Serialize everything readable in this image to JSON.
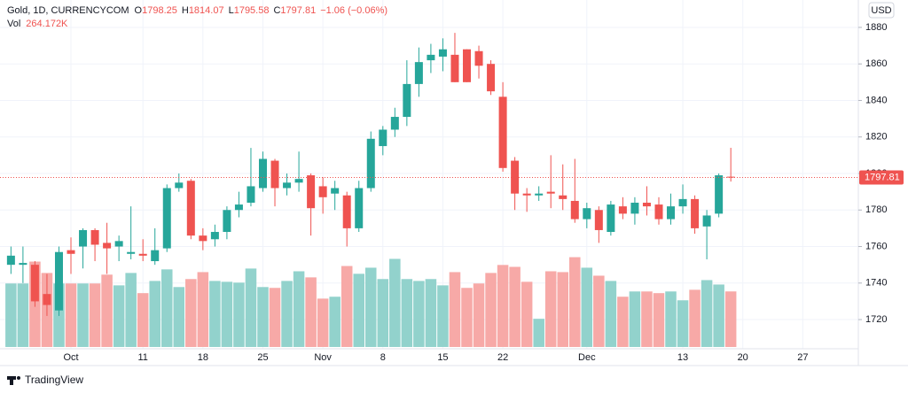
{
  "header": {
    "symbol": "Gold, 1D, CURRENCYCOM",
    "open_prefix": "O",
    "high_prefix": "H",
    "low_prefix": "L",
    "close_prefix": "C",
    "change": "−1.06 (−0.06%)",
    "vol_prefix": "Vol",
    "vol_value": "264.172K"
  },
  "currency": "USD",
  "brand": "TradingView",
  "chart_data": {
    "type": "candlestick",
    "categories": [
      null,
      null,
      null,
      null,
      null,
      "Oct",
      null,
      null,
      null,
      null,
      null,
      "11",
      null,
      null,
      null,
      null,
      "18",
      null,
      null,
      null,
      null,
      "25",
      null,
      null,
      null,
      null,
      "Nov",
      null,
      null,
      null,
      null,
      "8",
      null,
      null,
      null,
      null,
      "15",
      null,
      null,
      null,
      null,
      "22",
      null,
      null,
      null,
      null,
      null,
      null,
      "Dec",
      null,
      null,
      null,
      null,
      null,
      null,
      null,
      "13",
      null,
      null,
      null,
      null,
      "20",
      null,
      null,
      null,
      null,
      "27",
      null,
      null,
      null,
      null
    ],
    "open": [
      1750,
      1750,
      1750,
      1734,
      1725,
      1758,
      1760,
      1769,
      1762,
      1760,
      1756,
      1756,
      1752,
      1759,
      1792,
      1796,
      1766,
      1764,
      1768,
      1780,
      1784,
      1792,
      1807,
      1792,
      1795,
      1799,
      1793,
      1789,
      1788,
      1770,
      1792,
      1815,
      1824,
      1831,
      1849,
      1862,
      1864,
      1865,
      1868,
      1867,
      1860,
      1842,
      1807,
      1789,
      1788,
      1790,
      1788,
      1785,
      1775,
      1780,
      1768,
      1782,
      1778,
      1784,
      1783,
      1775,
      1782,
      1786,
      1771,
      1778,
      1798.25,
      null,
      null,
      null,
      null,
      null,
      null,
      null,
      null,
      null,
      null
    ],
    "high": [
      1760,
      1760,
      1752,
      1745,
      1760,
      1765,
      1770,
      1770,
      1773,
      1766,
      1782,
      1764,
      1770,
      1794,
      1800,
      1797,
      1770,
      1772,
      1782,
      1790,
      1814,
      1812,
      1808,
      1800,
      1812,
      1800,
      1798,
      1796,
      1790,
      1796,
      1823,
      1826,
      1836,
      1862,
      1869,
      1871,
      1874,
      1877,
      1868,
      1870,
      1862,
      1850,
      1809,
      1792,
      1793,
      1810,
      1805,
      1808,
      1784,
      1782,
      1785,
      1787,
      1787,
      1793,
      1787,
      1789,
      1794,
      1788,
      1780,
      1800,
      1814.07,
      null,
      null,
      null,
      null,
      null,
      null,
      null,
      null,
      null,
      null
    ],
    "low": [
      1745,
      1740,
      1727,
      1722,
      1722,
      1745,
      1748,
      1752,
      1745,
      1752,
      1753,
      1752,
      1750,
      1757,
      1790,
      1764,
      1758,
      1760,
      1764,
      1776,
      1782,
      1790,
      1782,
      1788,
      1790,
      1766,
      1778,
      1780,
      1760,
      1768,
      1790,
      1810,
      1820,
      1826,
      1842,
      1855,
      1856,
      1850,
      1850,
      1852,
      1843,
      1801,
      1780,
      1779,
      1785,
      1781,
      1780,
      1773,
      1770,
      1762,
      1766,
      1775,
      1772,
      1777,
      1772,
      1772,
      1778,
      1767,
      1753,
      1776,
      1795.58,
      null,
      null,
      null,
      null,
      null,
      null,
      null,
      null,
      null,
      null
    ],
    "close": [
      1755,
      1751,
      1730,
      1728,
      1757,
      1756,
      1769,
      1761,
      1759,
      1763,
      1757,
      1755,
      1758,
      1792,
      1795,
      1766,
      1763,
      1768,
      1780,
      1783,
      1793,
      1808,
      1792,
      1795,
      1797,
      1781,
      1787,
      1792,
      1770,
      1792,
      1819,
      1824,
      1831,
      1849,
      1861,
      1865,
      1868,
      1850,
      1850,
      1859,
      1845,
      1803,
      1789,
      1788,
      1789,
      1789,
      1786,
      1775,
      1781,
      1769,
      1783,
      1778,
      1784,
      1782,
      1775,
      1782,
      1786,
      1770,
      1777,
      1799,
      1797.81,
      null,
      null,
      null,
      null,
      null,
      null,
      null,
      null,
      null,
      null
    ],
    "volume": [
      302,
      302,
      406,
      352,
      302,
      302,
      302,
      302,
      344,
      293,
      352,
      256,
      314,
      369,
      285,
      323,
      356,
      314,
      310,
      306,
      373,
      285,
      281,
      314,
      360,
      331,
      230,
      239,
      385,
      348,
      377,
      323,
      419,
      323,
      314,
      323,
      293,
      356,
      281,
      302,
      352,
      390,
      381,
      310,
      134,
      360,
      356,
      427,
      377,
      339,
      314,
      239,
      264,
      264,
      256,
      264,
      222,
      272,
      318,
      297,
      264.172,
      null,
      null,
      null,
      null,
      null,
      null,
      null,
      null,
      null,
      null
    ],
    "ylim": [
      1705,
      1895
    ],
    "yticks": [
      1720,
      1740,
      1760,
      1780,
      1800,
      1820,
      1840,
      1860,
      1880
    ],
    "volume_ylim": [
      0,
      1650
    ],
    "grid": true,
    "last_price_line": true,
    "colors": {
      "up": "#26a69a",
      "down": "#ef5350",
      "up_volume": "#92d2cc",
      "down_volume": "#f7a9a7"
    }
  }
}
